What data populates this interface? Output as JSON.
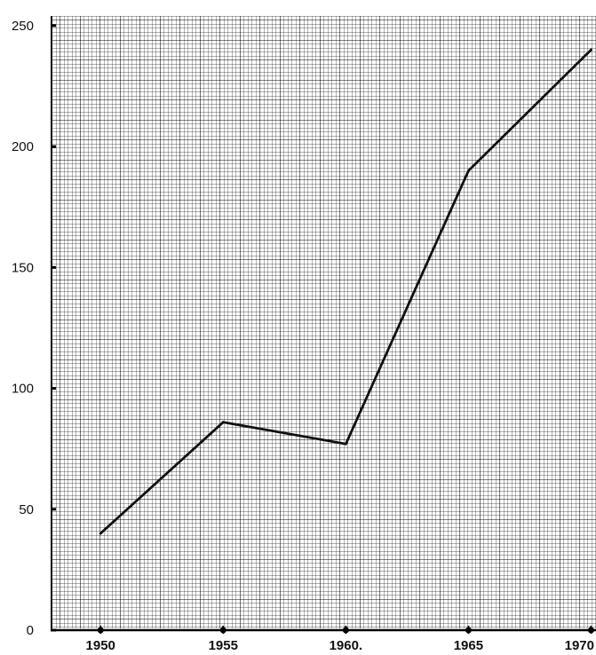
{
  "chart_data": {
    "type": "line",
    "x": [
      1950,
      1955,
      1960,
      1965,
      1970
    ],
    "series": [
      {
        "values": [
          40,
          86,
          77,
          190,
          240
        ],
        "color": "#111111"
      }
    ],
    "x_tick_labels": [
      "1950",
      "1955",
      "1960.",
      "1965",
      "1970"
    ],
    "y_ticks": [
      0,
      50,
      100,
      150,
      200,
      250
    ],
    "y_tick_labels": [
      "0",
      "50",
      "100",
      "150",
      "200",
      "250"
    ],
    "xlim": [
      1948,
      1970.2
    ],
    "ylim": [
      0,
      254
    ],
    "grid": true,
    "background_color": "#ffffff",
    "grid_color": "#333333",
    "title": "",
    "xlabel": "",
    "ylabel": ""
  }
}
